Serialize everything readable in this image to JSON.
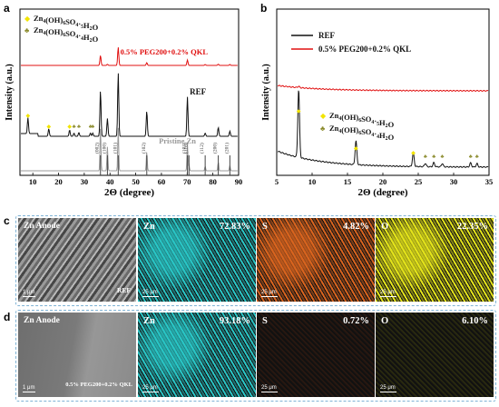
{
  "panel_letters": {
    "a": "a",
    "b": "b",
    "c": "c",
    "d": "d"
  },
  "chart_data": [
    {
      "id": "a",
      "type": "line",
      "xlabel": "2Θ (degree)",
      "ylabel": "Intensity (a.u.)",
      "xlim": [
        5,
        90
      ],
      "xticks": [
        10,
        20,
        30,
        40,
        50,
        60,
        70,
        80,
        90
      ],
      "legend": [
        {
          "symbol": "◆",
          "symbol_color": "#f2e400",
          "text": "Zn4(OH)6SO4·5H2O"
        },
        {
          "symbol": "♣",
          "symbol_color": "#8a8a2a",
          "text": "Zn4(OH)6SO4·4H2O"
        }
      ],
      "series": [
        {
          "name": "0.5% PEG200+0.2% QKL",
          "color": "#e01010",
          "peaks": [
            [
              36.3,
              0.55
            ],
            [
              39.0,
              0.06
            ],
            [
              43.2,
              1.0
            ],
            [
              54.3,
              0.15
            ],
            [
              70.1,
              0.3
            ],
            [
              77.0,
              0.05
            ],
            [
              82.1,
              0.07
            ],
            [
              86.6,
              0.05
            ]
          ]
        },
        {
          "name": "REF",
          "color": "#111111",
          "peaks": [
            [
              8.1,
              0.25
            ],
            [
              16.2,
              0.12
            ],
            [
              24.3,
              0.1
            ],
            [
              26.0,
              0.05
            ],
            [
              27.9,
              0.06
            ],
            [
              32.4,
              0.05
            ],
            [
              33.3,
              0.05
            ],
            [
              36.3,
              0.72
            ],
            [
              39.0,
              0.28
            ],
            [
              43.2,
              1.0
            ],
            [
              54.3,
              0.4
            ],
            [
              70.1,
              0.62
            ],
            [
              77.0,
              0.05
            ],
            [
              82.1,
              0.14
            ],
            [
              86.6,
              0.08
            ]
          ]
        },
        {
          "name": "Pristine Zn",
          "color": "#999999",
          "peaks": [
            [
              36.3,
              1.0
            ],
            [
              39.0,
              0.55
            ],
            [
              43.2,
              1.0
            ],
            [
              54.3,
              0.45
            ],
            [
              70.1,
              0.62
            ],
            [
              70.7,
              0.15
            ],
            [
              77.0,
              0.1
            ],
            [
              82.1,
              0.2
            ],
            [
              86.6,
              0.12
            ]
          ]
        }
      ],
      "reference_indices": [
        {
          "x": 36.3,
          "label": "(002)"
        },
        {
          "x": 39.0,
          "label": "(100)"
        },
        {
          "x": 43.2,
          "label": "(101)"
        },
        {
          "x": 54.3,
          "label": "(102)"
        },
        {
          "x": 70.1,
          "label": "(103)"
        },
        {
          "x": 70.7,
          "label": "(110)"
        },
        {
          "x": 77.0,
          "label": "(112)"
        },
        {
          "x": 82.1,
          "label": "(200)"
        },
        {
          "x": 86.6,
          "label": "(201)"
        }
      ]
    },
    {
      "id": "b",
      "type": "line",
      "xlabel": "2Θ (degree)",
      "ylabel": "Intensity (a.u.)",
      "xlim": [
        5,
        35
      ],
      "xticks": [
        5,
        10,
        15,
        20,
        25,
        30,
        35
      ],
      "legend_series": [
        {
          "text": "REF",
          "color": "#111111"
        },
        {
          "text": "0.5% PEG200+0.2% QKL",
          "color": "#e01010"
        }
      ],
      "legend_markers": [
        {
          "symbol": "◆",
          "symbol_color": "#f2e400",
          "text": "Zn4(OH)6SO4·5H2O"
        },
        {
          "symbol": "♣",
          "symbol_color": "#8a8a2a",
          "text": "Zn4(OH)6SO4·4H2O"
        }
      ],
      "series": [
        {
          "name": "REF",
          "color": "#111111",
          "peaks": [
            [
              8.1,
              1.0
            ],
            [
              16.2,
              0.35
            ],
            [
              24.3,
              0.2
            ],
            [
              26.0,
              0.05
            ],
            [
              27.2,
              0.06
            ],
            [
              28.4,
              0.05
            ],
            [
              32.4,
              0.06
            ],
            [
              33.3,
              0.05
            ]
          ]
        },
        {
          "name": "0.5% PEG200+0.2% QKL",
          "color": "#e01010",
          "peaks": [
            [
              8.1,
              0.12
            ]
          ]
        }
      ],
      "markers": [
        {
          "x": 8.1,
          "sym": "◆"
        },
        {
          "x": 16.2,
          "sym": "◆"
        },
        {
          "x": 24.3,
          "sym": "◆"
        },
        {
          "x": 26.0,
          "sym": "♣"
        },
        {
          "x": 27.2,
          "sym": "♣"
        },
        {
          "x": 28.4,
          "sym": "♣"
        },
        {
          "x": 32.4,
          "sym": "♣"
        },
        {
          "x": 33.3,
          "sym": "♣"
        }
      ]
    }
  ],
  "edx_rows": [
    {
      "id": "c",
      "sem_title": "Zn Anode",
      "sample": "REF",
      "scale": "1 μm",
      "maps": [
        {
          "element": "Zn",
          "percent": "72.83%",
          "color": "#29c6c6",
          "dim": false
        },
        {
          "element": "S",
          "percent": "4.82%",
          "color": "#d9641e",
          "dim": false
        },
        {
          "element": "O",
          "percent": "22.35%",
          "color": "#e4e41a",
          "dim": false
        }
      ],
      "map_scale": "25 μm"
    },
    {
      "id": "d",
      "sem_title": "Zn Anode",
      "sample": "0.5% PEG200+0.2% QKL",
      "scale": "1 μm",
      "maps": [
        {
          "element": "Zn",
          "percent": "93.18%",
          "color": "#29c6c6",
          "dim": false
        },
        {
          "element": "S",
          "percent": "0.72%",
          "color": "#a2461c",
          "dim": true
        },
        {
          "element": "O",
          "percent": "6.10%",
          "color": "#a8a818",
          "dim": true
        }
      ],
      "map_scale": "25 μm"
    }
  ]
}
